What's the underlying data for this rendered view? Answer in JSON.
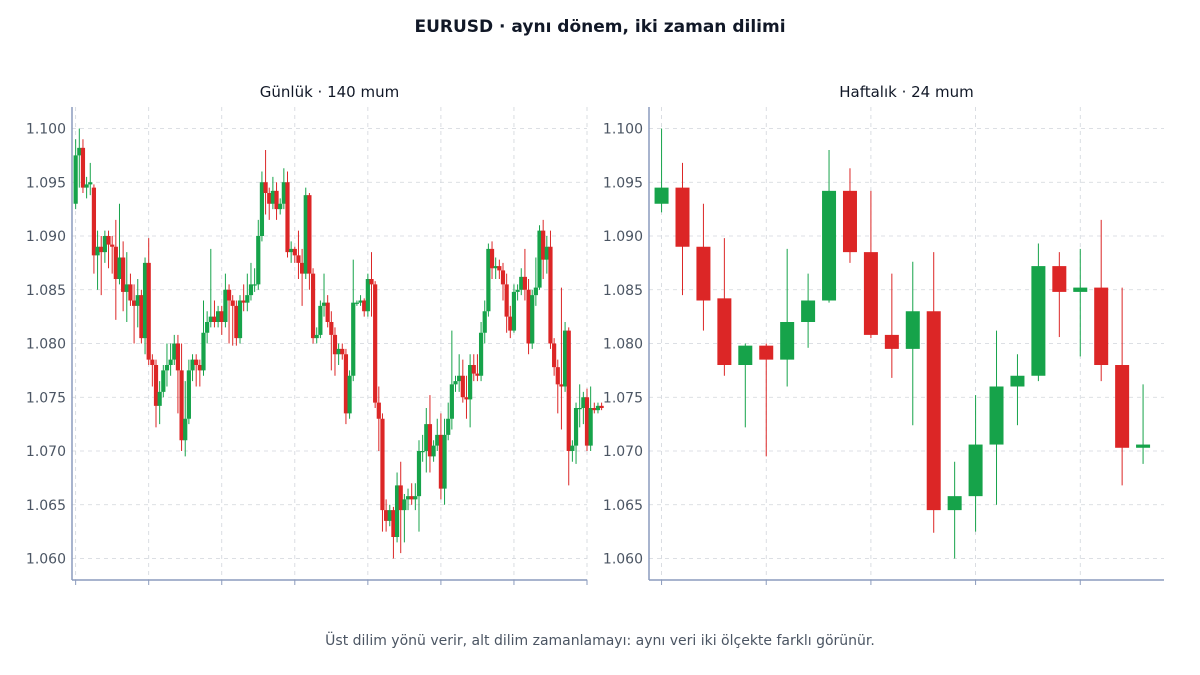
{
  "title": "EURUSD · aynı dönem, iki zaman dilimi",
  "footnote": "Üst dilim yönü verir, alt dilim zamanlamayı: aynı veri iki ölçekte farklı görünür.",
  "colors": {
    "up": "#16a34a",
    "down": "#dc2626",
    "axis": "#8b9bbd",
    "grid": "#d1d5db"
  },
  "chart_data": [
    {
      "type": "candlestick",
      "title": "Günlük · 140 mum",
      "ylim": [
        1.058,
        1.102
      ],
      "yticks": [
        "1.060",
        "1.065",
        "1.070",
        "1.075",
        "1.080",
        "1.085",
        "1.090",
        "1.095",
        "1.100"
      ],
      "xlim": [
        -1,
        140
      ],
      "xticks": [
        0,
        20,
        40,
        60,
        80,
        100,
        120,
        140
      ],
      "grid": true,
      "candles": [
        [
          1.093,
          1.0975,
          1.0925,
          1.099
        ],
        [
          1.0975,
          1.0982,
          1.0945,
          1.1
        ],
        [
          1.0982,
          1.0945,
          1.094,
          1.099
        ],
        [
          1.0945,
          1.0948,
          1.0935,
          1.0955
        ],
        [
          1.0948,
          1.095,
          1.0938,
          1.0968
        ],
        [
          1.0945,
          1.0882,
          1.0865,
          1.0948
        ],
        [
          1.0882,
          1.089,
          1.085,
          1.0905
        ],
        [
          1.089,
          1.0885,
          1.0845,
          1.09
        ],
        [
          1.0885,
          1.09,
          1.0875,
          1.0905
        ],
        [
          1.09,
          1.0892,
          1.087,
          1.0905
        ],
        [
          1.0892,
          1.089,
          1.0865,
          1.09
        ],
        [
          1.089,
          1.086,
          1.0822,
          1.0915
        ],
        [
          1.086,
          1.088,
          1.0855,
          1.093
        ],
        [
          1.088,
          1.0848,
          1.083,
          1.0895
        ],
        [
          1.0848,
          1.0855,
          1.082,
          1.0885
        ],
        [
          1.0855,
          1.084,
          1.0835,
          1.0865
        ],
        [
          1.084,
          1.0835,
          1.08,
          1.0855
        ],
        [
          1.0835,
          1.0845,
          1.0815,
          1.086
        ],
        [
          1.0845,
          1.0805,
          1.08,
          1.085
        ],
        [
          1.0805,
          1.0875,
          1.079,
          1.088
        ],
        [
          1.0875,
          1.0785,
          1.078,
          1.0898
        ],
        [
          1.0785,
          1.078,
          1.076,
          1.079
        ],
        [
          1.078,
          1.0742,
          1.0722,
          1.0785
        ],
        [
          1.0742,
          1.0755,
          1.0725,
          1.0765
        ],
        [
          1.0755,
          1.0775,
          1.075,
          1.078
        ],
        [
          1.0775,
          1.078,
          1.076,
          1.08
        ],
        [
          1.078,
          1.0785,
          1.077,
          1.08
        ],
        [
          1.0785,
          1.08,
          1.078,
          1.0808
        ],
        [
          1.08,
          1.0775,
          1.0735,
          1.0808
        ],
        [
          1.0775,
          1.071,
          1.07,
          1.08
        ],
        [
          1.071,
          1.073,
          1.0695,
          1.0765
        ],
        [
          1.073,
          1.0775,
          1.0725,
          1.0785
        ],
        [
          1.0775,
          1.0785,
          1.0765,
          1.079
        ],
        [
          1.0785,
          1.078,
          1.076,
          1.079
        ],
        [
          1.078,
          1.0775,
          1.076,
          1.0785
        ],
        [
          1.0775,
          1.081,
          1.077,
          1.084
        ],
        [
          1.081,
          1.082,
          1.08,
          1.083
        ],
        [
          1.082,
          1.0825,
          1.0815,
          1.0888
        ],
        [
          1.0825,
          1.082,
          1.0815,
          1.084
        ],
        [
          1.082,
          1.083,
          1.0815,
          1.0835
        ],
        [
          1.083,
          1.082,
          1.0808,
          1.0835
        ],
        [
          1.082,
          1.085,
          1.0815,
          1.0865
        ],
        [
          1.085,
          1.084,
          1.08,
          1.0855
        ],
        [
          1.084,
          1.0835,
          1.0798,
          1.0845
        ],
        [
          1.0835,
          1.0805,
          1.0798,
          1.084
        ],
        [
          1.0805,
          1.084,
          1.08,
          1.0845
        ],
        [
          1.084,
          1.0838,
          1.083,
          1.0855
        ],
        [
          1.0838,
          1.0845,
          1.083,
          1.0865
        ],
        [
          1.0845,
          1.0855,
          1.084,
          1.0875
        ],
        [
          1.0855,
          1.0855,
          1.0848,
          1.087
        ],
        [
          1.0855,
          1.09,
          1.085,
          1.0915
        ],
        [
          1.09,
          1.095,
          1.0895,
          1.096
        ],
        [
          1.095,
          1.094,
          1.092,
          1.098
        ],
        [
          1.094,
          1.093,
          1.0915,
          1.0945
        ],
        [
          1.093,
          1.0942,
          1.0925,
          1.0955
        ],
        [
          1.0942,
          1.0925,
          1.0915,
          1.095
        ],
        [
          1.0925,
          1.093,
          1.092,
          1.0935
        ],
        [
          1.093,
          1.095,
          1.0925,
          1.0963
        ],
        [
          1.095,
          1.0885,
          1.088,
          1.096
        ],
        [
          1.0885,
          1.0888,
          1.0875,
          1.0895
        ],
        [
          1.0888,
          1.0882,
          1.0875,
          1.089
        ],
        [
          1.0882,
          1.0875,
          1.086,
          1.0905
        ],
        [
          1.0875,
          1.0865,
          1.0835,
          1.0888
        ],
        [
          1.0865,
          1.0938,
          1.086,
          1.0945
        ],
        [
          1.0938,
          1.0865,
          1.085,
          1.094
        ],
        [
          1.0865,
          1.0805,
          1.08,
          1.087
        ],
        [
          1.0805,
          1.0808,
          1.08,
          1.0815
        ],
        [
          1.0808,
          1.0835,
          1.0805,
          1.084
        ],
        [
          1.0835,
          1.0838,
          1.0825,
          1.0865
        ],
        [
          1.0838,
          1.082,
          1.0815,
          1.0845
        ],
        [
          1.082,
          1.0808,
          1.0775,
          1.083
        ],
        [
          1.0808,
          1.079,
          1.077,
          1.0815
        ],
        [
          1.079,
          1.0795,
          1.078,
          1.08
        ],
        [
          1.0795,
          1.079,
          1.0785,
          1.08
        ],
        [
          1.079,
          1.0735,
          1.0725,
          1.0795
        ],
        [
          1.0735,
          1.077,
          1.073,
          1.0775
        ],
        [
          1.077,
          1.0838,
          1.0765,
          1.0878
        ],
        [
          1.0838,
          1.0838,
          1.0835,
          1.084
        ],
        [
          1.0838,
          1.084,
          1.0835,
          1.0845
        ],
        [
          1.084,
          1.083,
          1.0825,
          1.0842
        ],
        [
          1.083,
          1.086,
          1.0825,
          1.0865
        ],
        [
          1.086,
          1.0855,
          1.0825,
          1.0885
        ],
        [
          1.0855,
          1.0745,
          1.074,
          1.0858
        ],
        [
          1.0745,
          1.073,
          1.07,
          1.076
        ],
        [
          1.073,
          1.0645,
          1.0625,
          1.0735
        ],
        [
          1.0645,
          1.0635,
          1.0625,
          1.0655
        ],
        [
          1.0635,
          1.0645,
          1.063,
          1.065
        ],
        [
          1.0645,
          1.062,
          1.06,
          1.0648
        ],
        [
          1.062,
          1.0668,
          1.0615,
          1.068
        ],
        [
          1.0668,
          1.0645,
          1.0605,
          1.069
        ],
        [
          1.0645,
          1.0655,
          1.0615,
          1.066
        ],
        [
          1.0655,
          1.0658,
          1.0645,
          1.0665
        ],
        [
          1.0658,
          1.0655,
          1.065,
          1.067
        ],
        [
          1.0655,
          1.0658,
          1.0645,
          1.067
        ],
        [
          1.0658,
          1.07,
          1.0625,
          1.071
        ],
        [
          1.07,
          1.07,
          1.069,
          1.0715
        ],
        [
          1.07,
          1.0725,
          1.068,
          1.074
        ],
        [
          1.0725,
          1.0695,
          1.068,
          1.0752
        ],
        [
          1.0695,
          1.0705,
          1.069,
          1.071
        ],
        [
          1.0705,
          1.0715,
          1.07,
          1.073
        ],
        [
          1.0715,
          1.0665,
          1.0655,
          1.0735
        ],
        [
          1.0665,
          1.0715,
          1.065,
          1.073
        ],
        [
          1.0715,
          1.073,
          1.071,
          1.0745
        ],
        [
          1.073,
          1.0762,
          1.072,
          1.0812
        ],
        [
          1.0762,
          1.0765,
          1.0755,
          1.077
        ],
        [
          1.0765,
          1.077,
          1.0755,
          1.079
        ],
        [
          1.077,
          1.075,
          1.0745,
          1.0785
        ],
        [
          1.075,
          1.0748,
          1.073,
          1.077
        ],
        [
          1.0748,
          1.078,
          1.0722,
          1.079
        ],
        [
          1.078,
          1.0772,
          1.0765,
          1.079
        ],
        [
          1.0772,
          1.077,
          1.0765,
          1.079
        ],
        [
          1.077,
          1.081,
          1.0765,
          1.082
        ],
        [
          1.081,
          1.083,
          1.08,
          1.084
        ],
        [
          1.083,
          1.0888,
          1.0825,
          1.0893
        ],
        [
          1.0888,
          1.087,
          1.086,
          1.0895
        ],
        [
          1.087,
          1.0872,
          1.086,
          1.088
        ],
        [
          1.0872,
          1.0868,
          1.086,
          1.0878
        ],
        [
          1.0868,
          1.0855,
          1.084,
          1.0875
        ],
        [
          1.0855,
          1.0825,
          1.081,
          1.0865
        ],
        [
          1.0825,
          1.0812,
          1.0805,
          1.0835
        ],
        [
          1.0812,
          1.0848,
          1.081,
          1.0855
        ],
        [
          1.0848,
          1.085,
          1.084,
          1.0855
        ],
        [
          1.085,
          1.0862,
          1.0845,
          1.087
        ],
        [
          1.0862,
          1.085,
          1.084,
          1.0888
        ],
        [
          1.085,
          1.08,
          1.079,
          1.086
        ],
        [
          1.08,
          1.0845,
          1.0795,
          1.085
        ],
        [
          1.0845,
          1.0852,
          1.0835,
          1.088
        ],
        [
          1.0852,
          1.0905,
          1.085,
          1.091
        ],
        [
          1.0905,
          1.0878,
          1.086,
          1.0915
        ],
        [
          1.0878,
          1.089,
          1.0865,
          1.09
        ],
        [
          1.089,
          1.08,
          1.0795,
          1.0905
        ],
        [
          1.08,
          1.0778,
          1.077,
          1.0805
        ],
        [
          1.0778,
          1.0762,
          1.0735,
          1.0785
        ],
        [
          1.0762,
          1.076,
          1.072,
          1.0852
        ],
        [
          1.076,
          1.0812,
          1.0755,
          1.082
        ],
        [
          1.0812,
          1.07,
          1.0668,
          1.0815
        ],
        [
          1.07,
          1.0705,
          1.069,
          1.071
        ],
        [
          1.0705,
          1.074,
          1.0688,
          1.0745
        ],
        [
          1.074,
          1.074,
          1.0722,
          1.0762
        ],
        [
          1.074,
          1.075,
          1.0725,
          1.0755
        ],
        [
          1.075,
          1.0705,
          1.07,
          1.0758
        ],
        [
          1.0705,
          1.074,
          1.07,
          1.076
        ],
        [
          1.074,
          1.0738,
          1.0735,
          1.0745
        ],
        [
          1.0738,
          1.0742,
          1.0735,
          1.0745
        ],
        [
          1.0742,
          1.074,
          1.0738,
          1.0745
        ]
      ]
    },
    {
      "type": "candlestick",
      "title": "Haftalık · 24 mum",
      "ylim": [
        1.058,
        1.102
      ],
      "yticks": [
        "1.060",
        "1.065",
        "1.070",
        "1.075",
        "1.080",
        "1.085",
        "1.090",
        "1.095",
        "1.100"
      ],
      "xlim": [
        -0.6,
        24
      ],
      "xticks": [
        0,
        5,
        10,
        15,
        20
      ],
      "grid": true,
      "candles": [
        [
          1.093,
          1.0945,
          1.0922,
          1.1
        ],
        [
          1.0945,
          1.089,
          1.0845,
          1.0968
        ],
        [
          1.089,
          1.084,
          1.0812,
          1.093
        ],
        [
          1.0842,
          1.078,
          1.077,
          1.0898
        ],
        [
          1.078,
          1.0798,
          1.0722,
          1.08
        ],
        [
          1.0798,
          1.0785,
          1.0695,
          1.08
        ],
        [
          1.0785,
          1.082,
          1.076,
          1.0888
        ],
        [
          1.082,
          1.084,
          1.0796,
          1.0865
        ],
        [
          1.084,
          1.0942,
          1.0838,
          1.098
        ],
        [
          1.0942,
          1.0885,
          1.0875,
          1.0963
        ],
        [
          1.0885,
          1.0808,
          1.0805,
          1.0942
        ],
        [
          1.0808,
          1.0795,
          1.0768,
          1.0865
        ],
        [
          1.0795,
          1.083,
          1.0724,
          1.0876
        ],
        [
          1.083,
          1.0645,
          1.0624,
          1.0885
        ],
        [
          1.0645,
          1.0658,
          1.06,
          1.069
        ],
        [
          1.0658,
          1.0706,
          1.0625,
          1.0752
        ],
        [
          1.0706,
          1.076,
          1.065,
          1.0812
        ],
        [
          1.076,
          1.077,
          1.0724,
          1.079
        ],
        [
          1.077,
          1.0872,
          1.0765,
          1.0893
        ],
        [
          1.0872,
          1.0848,
          1.0806,
          1.0885
        ],
        [
          1.0848,
          1.0852,
          1.0788,
          1.0888
        ],
        [
          1.0852,
          1.078,
          1.0765,
          1.0915
        ],
        [
          1.078,
          1.0703,
          1.0668,
          1.0852
        ],
        [
          1.0703,
          1.0706,
          1.0688,
          1.0762
        ]
      ]
    }
  ]
}
